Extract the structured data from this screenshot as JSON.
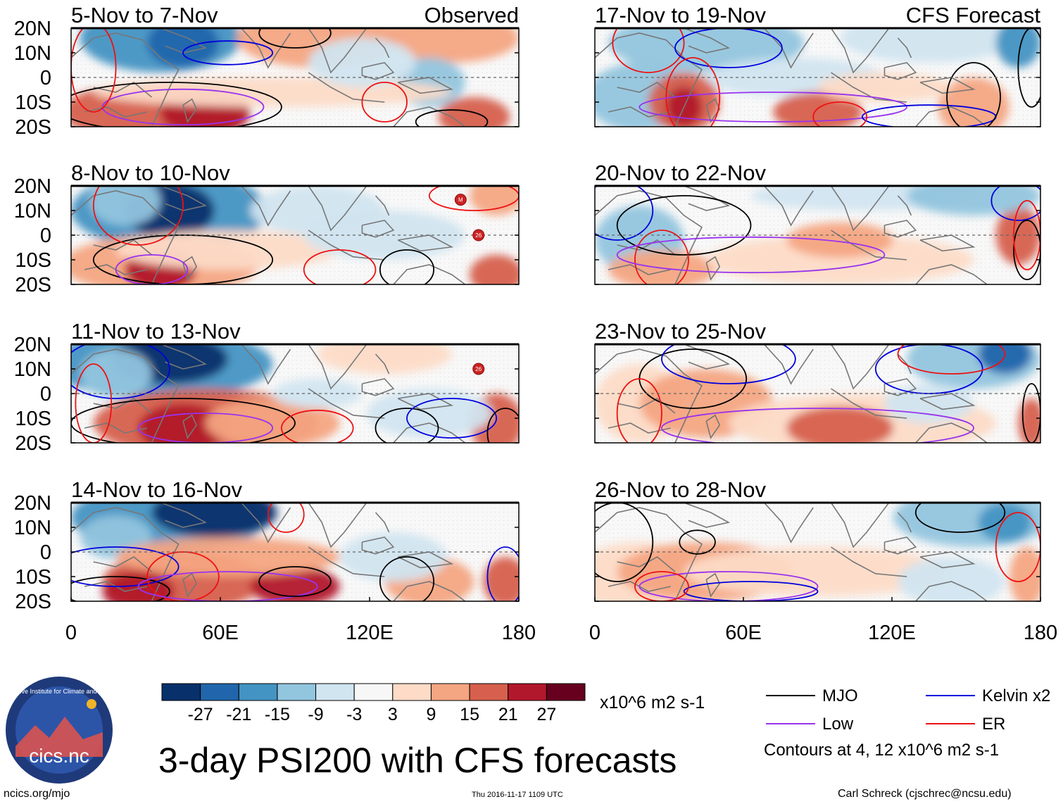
{
  "title": "3-day PSI200 with CFS forecasts",
  "columns": {
    "observed_label": "Observed",
    "forecast_label": "CFS Forecast"
  },
  "panels": [
    {
      "period": "5-Nov to 7-Nov",
      "source": "observed"
    },
    {
      "period": "8-Nov to 10-Nov",
      "source": "observed"
    },
    {
      "period": "11-Nov to 13-Nov",
      "source": "observed"
    },
    {
      "period": "14-Nov to 16-Nov",
      "source": "observed"
    },
    {
      "period": "17-Nov to 19-Nov",
      "source": "forecast"
    },
    {
      "period": "20-Nov to 22-Nov",
      "source": "forecast"
    },
    {
      "period": "23-Nov to 25-Nov",
      "source": "forecast"
    },
    {
      "period": "26-Nov to 28-Nov",
      "source": "forecast"
    }
  ],
  "lat_labels": [
    "20N",
    "10N",
    "0",
    "10S",
    "20S"
  ],
  "lon_labels": [
    "0",
    "60E",
    "120E",
    "180"
  ],
  "colorbar": {
    "ticks": [
      "-27",
      "-21",
      "-15",
      "-9",
      "-3",
      "3",
      "9",
      "15",
      "21",
      "27"
    ],
    "colors": [
      "#08306b",
      "#2166ac",
      "#4393c3",
      "#92c5de",
      "#d1e5f0",
      "#f7f7f7",
      "#fddbc7",
      "#f4a582",
      "#d6604d",
      "#b2182b",
      "#67001f"
    ],
    "units": "x10^6 m2 s-1"
  },
  "legend": {
    "items": [
      {
        "label": "MJO",
        "color": "#000000"
      },
      {
        "label": "Kelvin x2",
        "color": "#0000dd"
      },
      {
        "label": "Low",
        "color": "#9933ee"
      },
      {
        "label": "ER",
        "color": "#ee1111"
      }
    ],
    "note": "Contours at 4, 12 x10^6 m2 s-1"
  },
  "logo_text": "cics.nc",
  "logo_ring_text": "Cooperative Institute for Climate and Satellites",
  "footer": {
    "url": "ncics.org/mjo",
    "timestamp": "Thu 2016-11-17 1109 UTC",
    "author": "Carl Schreck (cjschrec@ncsu.edu)"
  },
  "storm_markers": [
    "M",
    "26"
  ]
}
